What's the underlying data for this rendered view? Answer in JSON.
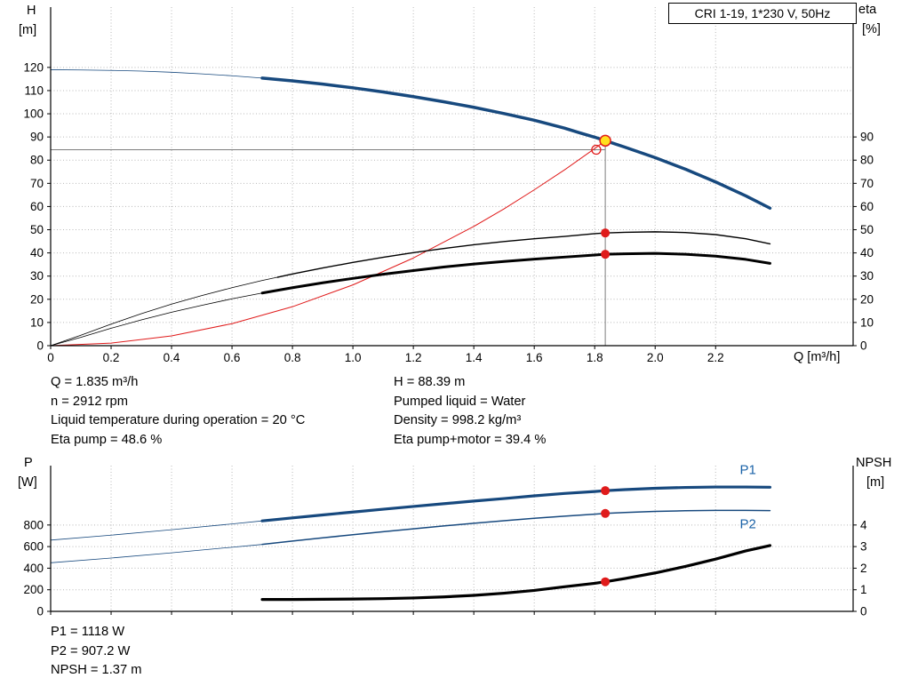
{
  "labels": {
    "h_axis": [
      "H",
      "[m]"
    ],
    "eta_axis": [
      "eta",
      "[%]"
    ],
    "p_axis": [
      "P",
      "[W]"
    ],
    "npsh_axis": [
      "NPSH",
      "[m]"
    ]
  },
  "info_top": {
    "left": [
      "Q = 1.835 m³/h",
      "n = 2912 rpm",
      "Liquid temperature during operation = 20 °C",
      "Eta pump = 48.6 %"
    ],
    "right": [
      "H = 88.39 m",
      "Pumped liquid = Water",
      "Density = 998.2 kg/m³",
      "Eta pump+motor = 39.4 %"
    ]
  },
  "info_bottom": [
    "P1 = 1118 W",
    "P2 = 907.2 W",
    "NPSH = 1.37 m"
  ],
  "chart_data": [
    {
      "type": "line",
      "name": "hq-eta-chart",
      "title_box": "CRI 1-19, 1*230 V, 50Hz",
      "colors": {
        "grid": "#b8b8b8",
        "guide": "#7d7d7d",
        "blue": "#17497e",
        "red": "#e01b1b",
        "yellow": "#ffe01e"
      },
      "x": {
        "label": "Q [m³/h]",
        "min": 0,
        "max": 2.655,
        "show_tick_labels": true,
        "ticks": [
          0,
          0.2,
          0.4,
          0.6,
          0.8,
          1,
          1.2,
          1.4,
          1.6,
          1.8,
          2,
          2.2
        ],
        "tick_labels": [
          "0",
          "0.2",
          "0.4",
          "0.6",
          "0.8",
          "1.0",
          "1.2",
          "1.4",
          "1.6",
          "1.8",
          "2.0",
          "2.2"
        ]
      },
      "y_left": {
        "label": "H [m]",
        "min": 0,
        "max": 146,
        "ticks": [
          0,
          10,
          20,
          30,
          40,
          50,
          60,
          70,
          80,
          90,
          100,
          110,
          120
        ],
        "tick_labels": [
          "0",
          "10",
          "20",
          "30",
          "40",
          "50",
          "60",
          "70",
          "80",
          "90",
          "100",
          "110",
          "120"
        ]
      },
      "y_right": {
        "label": "eta [%]",
        "min": 0,
        "max": 146,
        "ticks": [
          0,
          10,
          20,
          30,
          40,
          50,
          60,
          70,
          80,
          90
        ],
        "tick_labels": [
          "0",
          "10",
          "20",
          "30",
          "40",
          "50",
          "60",
          "70",
          "80",
          "90"
        ]
      },
      "series": [
        {
          "name": "system-curve",
          "axis": "left",
          "color": "#e01b1b",
          "width": 1,
          "points": [
            [
              0,
              0
            ],
            [
              0.2,
              1.1
            ],
            [
              0.4,
              4.2
            ],
            [
              0.6,
              9.5
            ],
            [
              0.8,
              16.8
            ],
            [
              1,
              26.2
            ],
            [
              1.2,
              37.8
            ],
            [
              1.4,
              51.4
            ],
            [
              1.5,
              59
            ],
            [
              1.6,
              67.2
            ],
            [
              1.7,
              75.8
            ],
            [
              1.8,
              85
            ],
            [
              1.835,
              88.39
            ]
          ]
        },
        {
          "name": "eta-pump-motor",
          "axis": "right",
          "color": "#000000",
          "width": 3,
          "thin_width": 0.8,
          "thin_until": 0.7,
          "points": [
            [
              0,
              0
            ],
            [
              0.1,
              3.6
            ],
            [
              0.2,
              7.5
            ],
            [
              0.3,
              11.1
            ],
            [
              0.4,
              14.4
            ],
            [
              0.5,
              17.4
            ],
            [
              0.6,
              20.2
            ],
            [
              0.7,
              22.7
            ],
            [
              0.8,
              25
            ],
            [
              0.9,
              27.1
            ],
            [
              1,
              29
            ],
            [
              1.1,
              30.8
            ],
            [
              1.2,
              32.4
            ],
            [
              1.3,
              33.9
            ],
            [
              1.4,
              35.2
            ],
            [
              1.5,
              36.3
            ],
            [
              1.6,
              37.3
            ],
            [
              1.7,
              38.2
            ],
            [
              1.8,
              39.1
            ],
            [
              1.835,
              39.4
            ],
            [
              1.9,
              39.6
            ],
            [
              2,
              39.8
            ],
            [
              2.1,
              39.4
            ],
            [
              2.2,
              38.6
            ],
            [
              2.3,
              37.2
            ],
            [
              2.38,
              35.5
            ]
          ]
        },
        {
          "name": "eta-pump",
          "axis": "right",
          "color": "#000000",
          "width": 1.4,
          "thin_width": 0.8,
          "thin_until": 0.75,
          "points": [
            [
              0,
              0
            ],
            [
              0.1,
              4.5
            ],
            [
              0.2,
              9.3
            ],
            [
              0.3,
              13.8
            ],
            [
              0.4,
              17.9
            ],
            [
              0.5,
              21.6
            ],
            [
              0.6,
              25
            ],
            [
              0.7,
              28.1
            ],
            [
              0.75,
              29.5
            ],
            [
              0.8,
              30.9
            ],
            [
              0.9,
              33.5
            ],
            [
              1,
              35.9
            ],
            [
              1.1,
              38.1
            ],
            [
              1.2,
              40.1
            ],
            [
              1.3,
              41.9
            ],
            [
              1.4,
              43.5
            ],
            [
              1.5,
              44.9
            ],
            [
              1.6,
              46.1
            ],
            [
              1.7,
              47.1
            ],
            [
              1.8,
              48.3
            ],
            [
              1.835,
              48.6
            ],
            [
              1.9,
              48.9
            ],
            [
              2,
              49.1
            ],
            [
              2.1,
              48.8
            ],
            [
              2.2,
              47.9
            ],
            [
              2.3,
              46.1
            ],
            [
              2.38,
              43.9
            ]
          ]
        },
        {
          "name": "h-curve",
          "axis": "left",
          "color": "#17497e",
          "width": 3.5,
          "thin_width": 0.8,
          "thin_until": 0.7,
          "points": [
            [
              0,
              119
            ],
            [
              0.1,
              118.9
            ],
            [
              0.2,
              118.7
            ],
            [
              0.3,
              118.4
            ],
            [
              0.4,
              117.9
            ],
            [
              0.5,
              117.2
            ],
            [
              0.6,
              116.4
            ],
            [
              0.7,
              115.4
            ],
            [
              0.8,
              114.2
            ],
            [
              0.9,
              112.8
            ],
            [
              1,
              111.2
            ],
            [
              1.1,
              109.4
            ],
            [
              1.2,
              107.4
            ],
            [
              1.3,
              105.2
            ],
            [
              1.4,
              102.8
            ],
            [
              1.5,
              100.1
            ],
            [
              1.6,
              97.2
            ],
            [
              1.7,
              93.8
            ],
            [
              1.75,
              91.8
            ],
            [
              1.8,
              89.9
            ],
            [
              1.835,
              88.39
            ],
            [
              1.9,
              85.6
            ],
            [
              2,
              81.1
            ],
            [
              2.1,
              76.1
            ],
            [
              2.2,
              70.6
            ],
            [
              2.3,
              64.6
            ],
            [
              2.38,
              59.3
            ]
          ]
        }
      ],
      "guides": [
        {
          "type": "h",
          "axis": "left",
          "y": 84.5,
          "x1": 0,
          "x2": 1.835
        },
        {
          "type": "v",
          "axis": "left",
          "x": 1.835,
          "y1": 0,
          "y2": 88.39
        }
      ],
      "markers": [
        {
          "axis": "right",
          "x": 1.835,
          "y": 48.6,
          "r": 5,
          "fill": "#e01b1b"
        },
        {
          "axis": "right",
          "x": 1.835,
          "y": 39.4,
          "r": 5,
          "fill": "#e01b1b"
        },
        {
          "axis": "left",
          "x": 1.805,
          "y": 84.5,
          "r": 5,
          "fill": "none",
          "stroke": "#e01b1b",
          "sw": 1.3
        },
        {
          "axis": "left",
          "x": 1.835,
          "y": 88.39,
          "r": 6,
          "fill": "#ffe01e",
          "stroke": "#e01b1b",
          "sw": 1.5
        }
      ],
      "duty_point": {
        "Q": 1.835,
        "H": 88.39,
        "eta_pump": 48.6,
        "eta_pump_motor": 39.4
      }
    },
    {
      "type": "line",
      "name": "power-npsh-chart",
      "colors": {
        "grid": "#b8b8b8",
        "guide": "#7d7d7d",
        "blue": "#17497e",
        "red": "#e01b1b",
        "label_blue": "#1b63a8"
      },
      "x": {
        "label": "Q [m³/h]",
        "min": 0,
        "max": 2.655,
        "show_tick_labels": false,
        "ticks": [
          0,
          0.2,
          0.4,
          0.6,
          0.8,
          1,
          1.2,
          1.4,
          1.6,
          1.8,
          2,
          2.2
        ],
        "tick_labels": [
          "0",
          "0.2",
          "0.4",
          "0.6",
          "0.8",
          "1.0",
          "1.2",
          "1.4",
          "1.6",
          "1.8",
          "2.0",
          "2.2"
        ]
      },
      "y_left": {
        "label": "P [W]",
        "min": 0,
        "max": 1350,
        "ticks": [
          0,
          200,
          400,
          600,
          800
        ],
        "tick_labels": [
          "0",
          "200",
          "400",
          "600",
          "800"
        ]
      },
      "y_right": {
        "label": "NPSH [m]",
        "min": 0,
        "max": 6.75,
        "ticks": [
          0,
          1,
          2,
          3,
          4
        ],
        "tick_labels": [
          "0",
          "1",
          "2",
          "3",
          "4"
        ]
      },
      "series": [
        {
          "name": "p1-curve",
          "axis": "left",
          "color": "#17497e",
          "width": 3.2,
          "thin_width": 0.8,
          "thin_until": 0.7,
          "points": [
            [
              0,
              660
            ],
            [
              0.2,
              706
            ],
            [
              0.4,
              756
            ],
            [
              0.6,
              810
            ],
            [
              0.7,
              838
            ],
            [
              0.8,
              866
            ],
            [
              0.9,
              893
            ],
            [
              1,
              920
            ],
            [
              1.1,
              946
            ],
            [
              1.2,
              972
            ],
            [
              1.3,
              997
            ],
            [
              1.4,
              1022
            ],
            [
              1.5,
              1045
            ],
            [
              1.6,
              1070
            ],
            [
              1.7,
              1092
            ],
            [
              1.8,
              1110
            ],
            [
              1.835,
              1118
            ],
            [
              1.9,
              1128
            ],
            [
              2,
              1140
            ],
            [
              2.1,
              1148
            ],
            [
              2.2,
              1152
            ],
            [
              2.3,
              1152
            ],
            [
              2.38,
              1150
            ]
          ]
        },
        {
          "name": "p2-curve",
          "axis": "left",
          "color": "#17497e",
          "width": 1.5,
          "thin_width": 0.8,
          "thin_until": 0.7,
          "points": [
            [
              0,
              450
            ],
            [
              0.2,
              494
            ],
            [
              0.4,
              542
            ],
            [
              0.6,
              594
            ],
            [
              0.7,
              620
            ],
            [
              0.8,
              651
            ],
            [
              0.9,
              681
            ],
            [
              1,
              710
            ],
            [
              1.1,
              738
            ],
            [
              1.2,
              765
            ],
            [
              1.3,
              791
            ],
            [
              1.4,
              816
            ],
            [
              1.5,
              840
            ],
            [
              1.6,
              862
            ],
            [
              1.7,
              882
            ],
            [
              1.8,
              900
            ],
            [
              1.835,
              907.2
            ],
            [
              1.9,
              916
            ],
            [
              2,
              926
            ],
            [
              2.1,
              932
            ],
            [
              2.2,
              935
            ],
            [
              2.3,
              935
            ],
            [
              2.38,
              933
            ]
          ]
        },
        {
          "name": "npsh-curve",
          "axis": "right",
          "color": "#000000",
          "width": 3.2,
          "points": [
            [
              0.7,
              0.55
            ],
            [
              0.8,
              0.55
            ],
            [
              0.9,
              0.56
            ],
            [
              1,
              0.57
            ],
            [
              1.1,
              0.59
            ],
            [
              1.2,
              0.62
            ],
            [
              1.3,
              0.67
            ],
            [
              1.4,
              0.74
            ],
            [
              1.5,
              0.84
            ],
            [
              1.6,
              0.97
            ],
            [
              1.7,
              1.14
            ],
            [
              1.8,
              1.3
            ],
            [
              1.835,
              1.37
            ],
            [
              1.9,
              1.52
            ],
            [
              2,
              1.78
            ],
            [
              2.1,
              2.08
            ],
            [
              2.2,
              2.42
            ],
            [
              2.3,
              2.8
            ],
            [
              2.38,
              3.05
            ]
          ]
        }
      ],
      "markers": [
        {
          "axis": "left",
          "x": 1.835,
          "y": 1118,
          "r": 5,
          "fill": "#e01b1b"
        },
        {
          "axis": "left",
          "x": 1.835,
          "y": 907.2,
          "r": 5,
          "fill": "#e01b1b"
        },
        {
          "axis": "right",
          "x": 1.835,
          "y": 1.37,
          "r": 5,
          "fill": "#e01b1b"
        }
      ],
      "labels": [
        {
          "text": "P1",
          "x": 2.28,
          "y": 1270,
          "axis": "left",
          "color": "#1b63a8",
          "size": 15
        },
        {
          "text": "P2",
          "x": 2.28,
          "y": 770,
          "axis": "left",
          "color": "#1b63a8",
          "size": 15
        }
      ],
      "duty_point": {
        "Q": 1.835,
        "P1": 1118,
        "P2": 907.2,
        "NPSH": 1.37
      }
    }
  ]
}
